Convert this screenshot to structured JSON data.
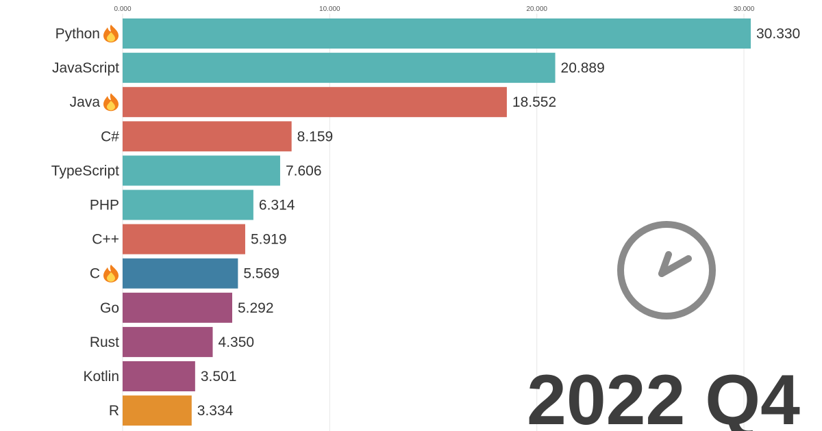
{
  "chart_data": {
    "type": "bar",
    "orientation": "horizontal",
    "categories": [
      "Python",
      "JavaScript",
      "Java",
      "C#",
      "TypeScript",
      "PHP",
      "C++",
      "C",
      "Go",
      "Rust",
      "Kotlin",
      "R"
    ],
    "values": [
      30.33,
      20.889,
      18.552,
      8.159,
      7.606,
      6.314,
      5.919,
      5.569,
      5.292,
      4.35,
      3.501,
      3.334
    ],
    "value_labels": [
      "30.330",
      "20.889",
      "18.552",
      "8.159",
      "7.606",
      "6.314",
      "5.919",
      "5.569",
      "5.292",
      "4.350",
      "3.501",
      "3.334"
    ],
    "colors": [
      "#58b4b4",
      "#58b4b4",
      "#d4685a",
      "#d4685a",
      "#58b4b4",
      "#58b4b4",
      "#d4685a",
      "#3f7fa3",
      "#a0507c",
      "#a0507c",
      "#a0507c",
      "#e3902e"
    ],
    "fire_marked": [
      "Python",
      "Java",
      "C"
    ],
    "x_ticks": [
      0,
      10,
      20,
      30
    ],
    "x_tick_labels": [
      "0.000",
      "10.000",
      "20.000",
      "30.000"
    ],
    "xlim": [
      0,
      30.33
    ],
    "grid": true,
    "period": "2022 Q4",
    "period_icon": "clock-icon",
    "title": "",
    "xlabel": "",
    "ylabel": ""
  }
}
